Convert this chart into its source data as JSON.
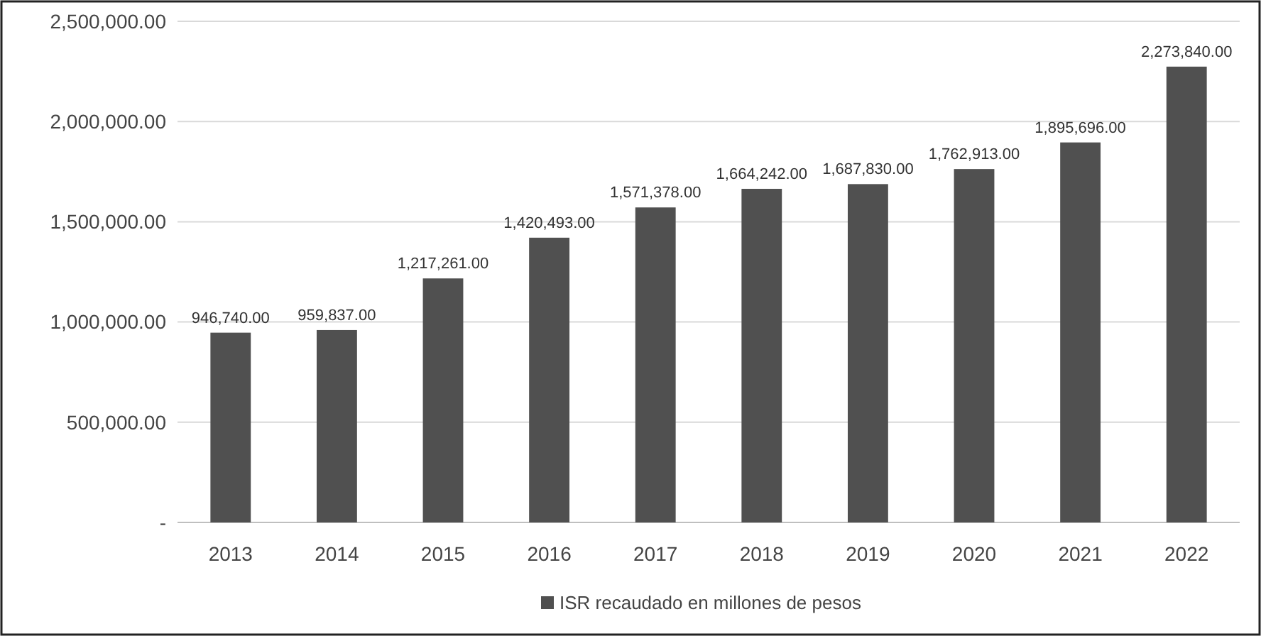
{
  "chart_data": {
    "type": "bar",
    "categories": [
      "2013",
      "2014",
      "2015",
      "2016",
      "2017",
      "2018",
      "2019",
      "2020",
      "2021",
      "2022"
    ],
    "series": [
      {
        "name": "ISR recaudado en millones de pesos",
        "color": "#505050",
        "values": [
          946740,
          959837,
          1217261,
          1420493,
          1571378,
          1664242,
          1687830,
          1762913,
          1895696,
          2273840
        ],
        "value_labels": [
          "946,740.00",
          "959,837.00",
          "1,217,261.00",
          "1,420,493.00",
          "1,571,378.00",
          "1,664,242.00",
          "1,687,830.00",
          "1,762,913.00",
          "1,895,696.00",
          "2,273,840.00"
        ]
      }
    ],
    "ylim": [
      0,
      2500000
    ],
    "yticks": [
      {
        "value": 0,
        "label": "-"
      },
      {
        "value": 500000,
        "label": "500,000.00"
      },
      {
        "value": 1000000,
        "label": "1,000,000.00"
      },
      {
        "value": 1500000,
        "label": "1,500,000.00"
      },
      {
        "value": 2000000,
        "label": "2,000,000.00"
      },
      {
        "value": 2500000,
        "label": "2,500,000.00"
      }
    ],
    "grid": "y",
    "legend": "bottom"
  }
}
